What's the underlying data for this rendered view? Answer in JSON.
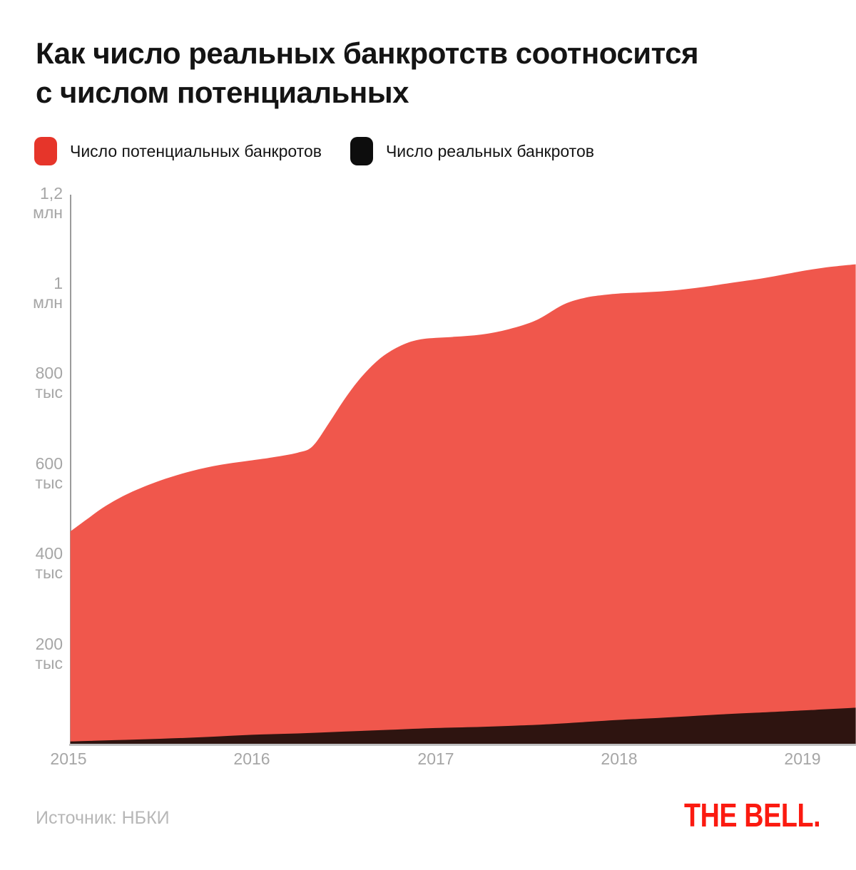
{
  "header": {
    "title_line1": "Как число реальных банкротств соотносится",
    "title_line2": "с числом потенциальных"
  },
  "legend": {
    "items": [
      {
        "label": "Число потенциальных банкротов",
        "color": "#e6352a"
      },
      {
        "label": "Число реальных банкротов",
        "color": "#0d0d0d"
      }
    ]
  },
  "footer": {
    "source": "Источник: НБКИ",
    "logo": "THE BELL."
  },
  "colors": {
    "potential_area": "#f0574c",
    "real_area": "#2e1410",
    "legend_red": "#e6352a",
    "legend_black": "#0d0d0d",
    "bell_red": "#fb1a10"
  },
  "chart_data": {
    "type": "area",
    "title": "Как число реальных банкротств соотносится с числом потенциальных",
    "xlabel": "",
    "ylabel": "",
    "grid": "off",
    "legend_position": "top-left",
    "x_domain": [
      2015,
      2019.3
    ],
    "ylim_thousands": [
      0,
      1250
    ],
    "x_ticks": [
      {
        "label": "2015",
        "year": 2015
      },
      {
        "label": "2016",
        "year": 2016
      },
      {
        "label": "2017",
        "year": 2017
      },
      {
        "label": "2018",
        "year": 2018
      },
      {
        "label": "2019",
        "year": 2019
      }
    ],
    "y_ticks": [
      {
        "value_thousands": 1200,
        "line1": "1,2",
        "line2": "млн"
      },
      {
        "value_thousands": 1000,
        "line1": "1",
        "line2": "млн"
      },
      {
        "value_thousands": 800,
        "line1": "800",
        "line2": "тыс"
      },
      {
        "value_thousands": 600,
        "line1": "600",
        "line2": "тыс"
      },
      {
        "value_thousands": 400,
        "line1": "400",
        "line2": "тыс"
      },
      {
        "value_thousands": 200,
        "line1": "200",
        "line2": "тыс"
      }
    ],
    "series": [
      {
        "name": "Число потенциальных банкротов",
        "color": "#f0574c",
        "x": [
          2015.01,
          2015.1,
          2015.2,
          2015.33,
          2015.5,
          2015.67,
          2015.83,
          2016.0,
          2016.12,
          2016.25,
          2016.33,
          2016.42,
          2016.5,
          2016.58,
          2016.67,
          2016.75,
          2016.85,
          2016.95,
          2017.1,
          2017.25,
          2017.4,
          2017.55,
          2017.7,
          2017.82,
          2017.92,
          2018.0,
          2018.15,
          2018.3,
          2018.45,
          2018.6,
          2018.8,
          2019.0,
          2019.15,
          2019.29
        ],
        "values_thousands": [
          471,
          498,
          527,
          556,
          584,
          605,
          619,
          629,
          636,
          646,
          660,
          712,
          762,
          806,
          845,
          870,
          890,
          899,
          903,
          908,
          920,
          940,
          975,
          990,
          996,
          999,
          1002,
          1006,
          1013,
          1022,
          1034,
          1049,
          1058,
          1064
        ]
      },
      {
        "name": "Число реальных банкротов",
        "color": "#2e1410",
        "x": [
          2015.01,
          2015.25,
          2015.5,
          2015.75,
          2016.0,
          2016.25,
          2016.5,
          2016.75,
          2017.0,
          2017.2,
          2017.42,
          2017.6,
          2017.8,
          2018.0,
          2018.25,
          2018.5,
          2018.75,
          2019.0,
          2019.15,
          2019.29
        ],
        "values_thousands": [
          5,
          8,
          11,
          15,
          20,
          23,
          27,
          31,
          35,
          37,
          40,
          43,
          48,
          53,
          58,
          64,
          69,
          74,
          77,
          80
        ]
      }
    ]
  }
}
